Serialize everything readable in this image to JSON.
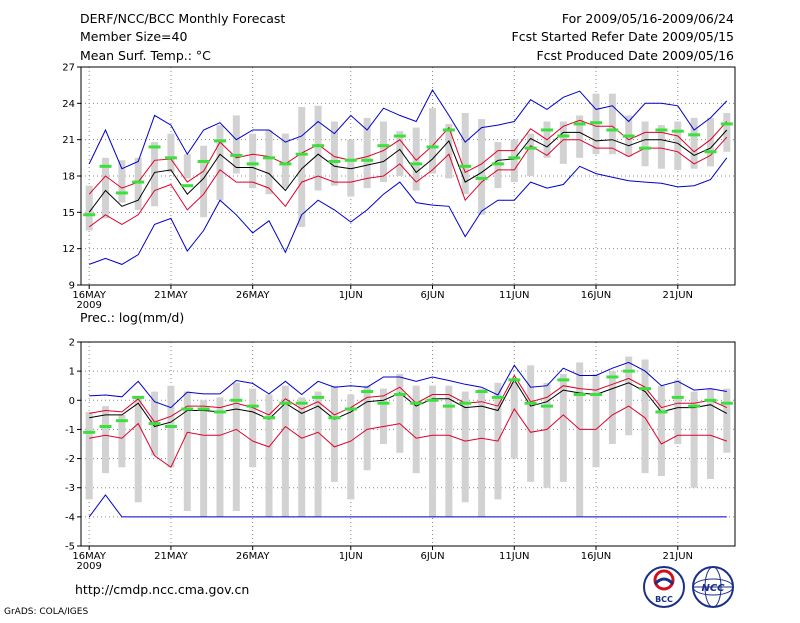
{
  "header": {
    "title": "DERF/NCC/BCC Monthly Forecast",
    "member_size": "Member Size=40",
    "variable": "Mean Surf. Temp.: °C",
    "period": "For 2009/05/16-2009/06/24",
    "fcst_started": "Fcst Started Refer Date 2009/05/15",
    "fcst_produced": "Fcst Produced Date 2009/05/16"
  },
  "footer": {
    "url": "http://cmdp.ncc.cma.gov.cn",
    "grads": "GrADS: COLA/IGES",
    "logo_bcc": "BCC",
    "logo_ncc": "NCC"
  },
  "colors": {
    "box": "#d2d2d2",
    "ensemble_mean": "#000000",
    "spread": "#e0002a",
    "extremes": "#0000cc",
    "observation": "#3ce03c",
    "grid": "#888888"
  },
  "chart_data": [
    {
      "type": "line",
      "title": "",
      "ylabel": "Mean Surf. Temp.: °C",
      "ylim": [
        9,
        27
      ],
      "yticks": [
        "9",
        "12",
        "15",
        "18",
        "21",
        "24",
        "27"
      ],
      "xticks": [
        {
          "day": 1,
          "label": "16MAY",
          "sub": "2009"
        },
        {
          "day": 6,
          "label": "21MAY"
        },
        {
          "day": 11,
          "label": "26MAY"
        },
        {
          "day": 17,
          "label": "1JUN"
        },
        {
          "day": 22,
          "label": "6JUN"
        },
        {
          "day": 27,
          "label": "11JUN"
        },
        {
          "day": 32,
          "label": "16JUN"
        },
        {
          "day": 37,
          "label": "21JUN"
        }
      ],
      "days": 40,
      "box_lo": [
        13.5,
        14.5,
        15.8,
        15.2,
        15.5,
        18.3,
        17.8,
        14.6,
        16.0,
        18.2,
        17.0,
        16.5,
        17.0,
        13.8,
        16.8,
        17.2,
        16.3,
        17.0,
        17.5,
        18.0,
        16.8,
        18.2,
        17.8,
        16.5,
        14.8,
        17.0,
        17.5,
        18.0,
        19.5,
        19.0,
        19.5,
        19.8,
        19.8,
        19.6,
        18.8,
        18.6,
        18.5,
        18.6,
        18.8,
        20.0
      ],
      "box_hi": [
        17.2,
        19.5,
        19.3,
        19.5,
        20.8,
        21.5,
        19.8,
        20.5,
        22.2,
        23.0,
        21.5,
        21.8,
        21.5,
        23.7,
        23.8,
        22.5,
        21.0,
        22.8,
        22.5,
        21.7,
        22.0,
        23.6,
        22.3,
        23.2,
        22.7,
        20.8,
        21.0,
        21.5,
        22.5,
        22.5,
        23.0,
        24.8,
        24.8,
        23.0,
        22.5,
        22.2,
        22.5,
        22.8,
        22.8,
        23.2
      ],
      "obs": [
        14.8,
        18.8,
        16.6,
        17.5,
        20.4,
        19.5,
        17.2,
        19.2,
        20.9,
        19.7,
        19.0,
        19.5,
        19.0,
        19.8,
        20.5,
        19.2,
        19.3,
        19.3,
        20.5,
        21.3,
        19.0,
        20.4,
        21.8,
        18.8,
        17.8,
        19.0,
        19.5,
        20.3,
        21.8,
        21.3,
        22.3,
        22.4,
        21.8,
        21.3,
        20.3,
        21.8,
        21.7,
        21.4,
        20.0,
        22.3
      ],
      "series": [
        {
          "name": "ensemble max",
          "color": "#0000cc",
          "values": [
            19.0,
            21.8,
            18.6,
            19.2,
            23.0,
            22.2,
            19.8,
            21.8,
            22.4,
            21.0,
            21.8,
            21.8,
            20.8,
            21.3,
            22.5,
            21.5,
            23.0,
            21.8,
            23.6,
            23.0,
            22.5,
            25.1,
            23.0,
            20.8,
            22.0,
            22.2,
            22.5,
            24.3,
            23.5,
            24.5,
            25.0,
            23.5,
            23.8,
            22.5,
            24.0,
            24.0,
            23.8,
            21.8,
            22.8,
            24.2
          ]
        },
        {
          "name": "upper spread",
          "color": "#e0002a",
          "values": [
            16.5,
            18.0,
            17.0,
            17.5,
            19.3,
            19.4,
            17.5,
            18.4,
            20.8,
            19.5,
            19.8,
            19.6,
            19.0,
            19.9,
            20.6,
            19.6,
            19.3,
            19.6,
            20.1,
            21.0,
            19.3,
            20.5,
            22.0,
            18.3,
            19.0,
            20.1,
            20.1,
            21.9,
            21.0,
            22.1,
            22.6,
            22.1,
            22.1,
            21.0,
            21.6,
            21.6,
            21.3,
            20.0,
            21.0,
            22.5
          ]
        },
        {
          "name": "ensemble mean",
          "color": "#000000",
          "values": [
            15.0,
            16.8,
            15.5,
            16.0,
            18.3,
            18.5,
            16.5,
            17.8,
            19.8,
            18.7,
            18.7,
            18.2,
            16.8,
            18.6,
            19.8,
            18.8,
            18.6,
            18.9,
            19.2,
            20.2,
            18.3,
            19.4,
            20.9,
            17.5,
            18.3,
            19.3,
            19.4,
            21.1,
            20.4,
            21.6,
            21.6,
            20.9,
            21.0,
            20.5,
            21.0,
            21.0,
            20.7,
            19.7,
            20.3,
            21.8
          ]
        },
        {
          "name": "lower spread",
          "color": "#e0002a",
          "values": [
            13.8,
            14.8,
            14.0,
            14.8,
            16.8,
            17.3,
            15.2,
            16.5,
            18.5,
            17.5,
            17.5,
            17.0,
            15.5,
            17.5,
            18.0,
            17.5,
            17.5,
            17.8,
            18.0,
            19.0,
            17.5,
            18.5,
            19.8,
            16.0,
            17.5,
            18.5,
            18.5,
            20.5,
            19.7,
            21.0,
            21.0,
            20.3,
            20.3,
            19.6,
            20.3,
            20.3,
            20.0,
            19.0,
            19.7,
            21.2
          ]
        },
        {
          "name": "ensemble min",
          "color": "#0000cc",
          "values": [
            10.7,
            11.2,
            10.7,
            11.5,
            14.0,
            14.5,
            11.8,
            13.5,
            16.0,
            14.8,
            13.3,
            14.3,
            11.7,
            14.8,
            16.0,
            15.2,
            14.2,
            15.2,
            16.5,
            17.5,
            15.8,
            15.6,
            15.5,
            13.0,
            15.1,
            16.0,
            16.0,
            17.5,
            17.0,
            17.3,
            18.8,
            18.2,
            17.9,
            17.6,
            17.5,
            17.4,
            17.1,
            17.2,
            17.7,
            19.5
          ]
        }
      ]
    },
    {
      "type": "line",
      "title": "",
      "ylabel": "Prec.: log(mm/d)",
      "ylim": [
        -5,
        2
      ],
      "yticks": [
        "-5",
        "-4",
        "-3",
        "-2",
        "-1",
        "0",
        "1",
        "2"
      ],
      "xticks": [
        {
          "day": 1,
          "label": "16MAY",
          "sub": "2009"
        },
        {
          "day": 6,
          "label": "21MAY"
        },
        {
          "day": 11,
          "label": "26MAY"
        },
        {
          "day": 17,
          "label": "1JUN"
        },
        {
          "day": 22,
          "label": "6JUN"
        },
        {
          "day": 27,
          "label": "11JUN"
        },
        {
          "day": 32,
          "label": "16JUN"
        },
        {
          "day": 37,
          "label": "21JUN"
        }
      ],
      "days": 40,
      "box_lo": [
        -3.4,
        -2.5,
        -2.3,
        -3.5,
        -1.9,
        -2.3,
        -3.8,
        -4.0,
        -4.0,
        -3.8,
        -2.3,
        -4.0,
        -4.0,
        -4.0,
        -4.0,
        -2.8,
        -3.4,
        -2.4,
        -1.5,
        -1.8,
        -2.5,
        -4.0,
        -4.0,
        -3.5,
        -4.0,
        -3.4,
        -2.0,
        -2.8,
        -3.0,
        -2.8,
        -4.0,
        -2.3,
        -1.5,
        -1.2,
        -2.5,
        -2.6,
        -1.5,
        -3.0,
        -2.7,
        -1.8
      ],
      "box_hi": [
        -0.4,
        -0.2,
        -0.5,
        0.1,
        0.3,
        0.5,
        0.3,
        0.0,
        0.1,
        0.6,
        0.4,
        0.2,
        0.5,
        0.1,
        0.3,
        0.5,
        0.2,
        0.5,
        0.4,
        0.9,
        0.5,
        0.5,
        0.5,
        0.3,
        0.4,
        0.6,
        0.6,
        1.2,
        0.6,
        0.9,
        1.3,
        0.9,
        1.0,
        1.5,
        1.4,
        0.5,
        0.7,
        0.3,
        0.4,
        0.4
      ],
      "obs": [
        -1.1,
        -0.9,
        -0.7,
        0.1,
        -0.8,
        -0.9,
        -0.3,
        -0.3,
        -0.4,
        0.0,
        -0.2,
        -0.6,
        -0.1,
        -0.1,
        0.1,
        -0.6,
        -0.3,
        0.3,
        -0.1,
        0.2,
        -0.1,
        0.0,
        -0.2,
        -0.1,
        0.3,
        0.1,
        0.7,
        -0.1,
        -0.2,
        0.7,
        0.2,
        0.2,
        0.8,
        1.0,
        0.4,
        -0.4,
        0.1,
        -0.2,
        0.0,
        -0.1
      ],
      "series": [
        {
          "name": "ensemble max",
          "color": "#0000cc",
          "values": [
            0.15,
            0.18,
            0.12,
            0.65,
            -0.05,
            -0.25,
            0.28,
            0.22,
            0.22,
            0.68,
            0.58,
            0.22,
            0.65,
            0.2,
            0.65,
            0.45,
            0.5,
            0.45,
            0.8,
            0.8,
            0.65,
            0.8,
            0.68,
            0.55,
            0.45,
            0.18,
            1.2,
            0.45,
            0.5,
            1.1,
            0.85,
            0.85,
            1.1,
            1.3,
            1.0,
            0.5,
            0.65,
            0.35,
            0.4,
            0.3
          ]
        },
        {
          "name": "upper spread",
          "color": "#e0002a",
          "values": [
            -0.45,
            -0.35,
            -0.4,
            0.05,
            -0.75,
            -0.55,
            -0.2,
            -0.2,
            -0.25,
            -0.1,
            -0.25,
            -0.5,
            0.05,
            -0.3,
            -0.05,
            -0.5,
            -0.25,
            0.1,
            0.15,
            0.45,
            -0.1,
            0.2,
            0.2,
            -0.1,
            -0.05,
            -0.2,
            0.85,
            -0.05,
            0.1,
            0.5,
            0.4,
            0.35,
            0.55,
            0.75,
            0.45,
            -0.25,
            -0.1,
            -0.1,
            0.0,
            -0.25
          ]
        },
        {
          "name": "ensemble mean",
          "color": "#000000",
          "values": [
            -0.6,
            -0.5,
            -0.5,
            -0.1,
            -0.9,
            -0.75,
            -0.35,
            -0.35,
            -0.4,
            -0.3,
            -0.4,
            -0.65,
            -0.1,
            -0.45,
            -0.2,
            -0.65,
            -0.4,
            -0.05,
            0.0,
            0.25,
            -0.2,
            0.05,
            0.05,
            -0.25,
            -0.2,
            -0.35,
            0.7,
            -0.2,
            -0.05,
            0.35,
            0.25,
            0.2,
            0.4,
            0.6,
            0.3,
            -0.4,
            -0.25,
            -0.25,
            -0.15,
            -0.45
          ]
        },
        {
          "name": "lower spread",
          "color": "#e0002a",
          "values": [
            -1.3,
            -1.2,
            -1.3,
            -0.8,
            -1.9,
            -2.3,
            -1.1,
            -1.2,
            -1.2,
            -1.0,
            -1.4,
            -1.6,
            -0.9,
            -1.3,
            -1.1,
            -1.6,
            -1.4,
            -1.0,
            -0.9,
            -0.8,
            -1.3,
            -1.2,
            -1.2,
            -1.4,
            -1.3,
            -1.4,
            -0.3,
            -1.1,
            -1.0,
            -0.5,
            -1.0,
            -1.0,
            -0.5,
            -0.2,
            -0.6,
            -1.5,
            -1.2,
            -1.2,
            -1.2,
            -1.4
          ]
        },
        {
          "name": "ensemble min",
          "color": "#0000cc",
          "values": [
            -4.0,
            -3.25,
            -4.0,
            -4.0,
            -4.0,
            -4.0,
            -4.0,
            -4.0,
            -4.0,
            -4.0,
            -4.0,
            -4.0,
            -4.0,
            -4.0,
            -4.0,
            -4.0,
            -4.0,
            -4.0,
            -4.0,
            -4.0,
            -4.0,
            -4.0,
            -4.0,
            -4.0,
            -4.0,
            -4.0,
            -4.0,
            -4.0,
            -4.0,
            -4.0,
            -4.0,
            -4.0,
            -4.0,
            -4.0,
            -4.0,
            -4.0,
            -4.0,
            -4.0,
            -4.0,
            -4.0
          ]
        }
      ]
    }
  ]
}
